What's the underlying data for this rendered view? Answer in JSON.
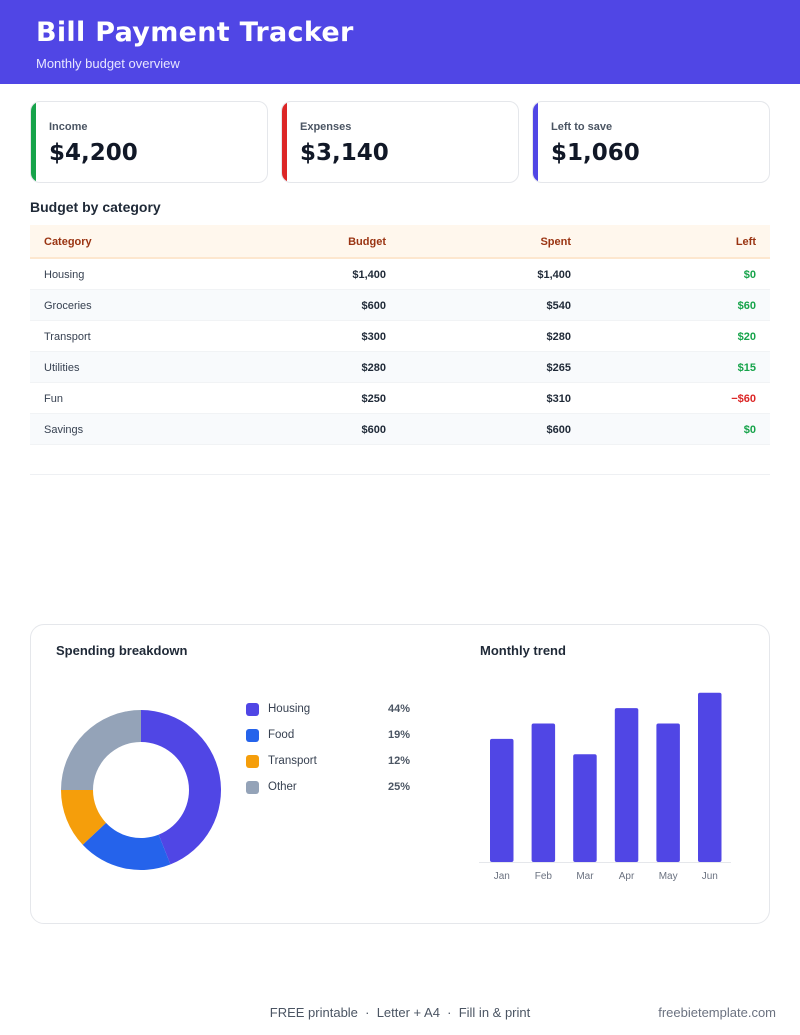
{
  "header": {
    "title": "Bill Payment Tracker",
    "subtitle": "Monthly budget overview"
  },
  "summary": [
    {
      "label": "Income",
      "value": "$4,200",
      "color": "#16a34a"
    },
    {
      "label": "Expenses",
      "value": "$3,140",
      "color": "#dc2626"
    },
    {
      "label": "Left to save",
      "value": "$1,060",
      "color": "#5046e5"
    }
  ],
  "budget": {
    "title": "Budget by category",
    "columns": [
      "Category",
      "Budget",
      "Spent",
      "Left"
    ],
    "rows": [
      {
        "category": "Housing",
        "budget": "$1,400",
        "spent": "$1,400",
        "left": "$0",
        "negative": false
      },
      {
        "category": "Groceries",
        "budget": "$600",
        "spent": "$540",
        "left": "$60",
        "negative": false
      },
      {
        "category": "Transport",
        "budget": "$300",
        "spent": "$280",
        "left": "$20",
        "negative": false
      },
      {
        "category": "Utilities",
        "budget": "$280",
        "spent": "$265",
        "left": "$15",
        "negative": false
      },
      {
        "category": "Fun",
        "budget": "$250",
        "spent": "$310",
        "left": "−$60",
        "negative": true
      },
      {
        "category": "Savings",
        "budget": "$600",
        "spent": "$600",
        "left": "$0",
        "negative": false
      }
    ]
  },
  "chart_data": [
    {
      "type": "pie",
      "title": "Spending breakdown",
      "donut": true,
      "categories": [
        "Housing",
        "Food",
        "Transport",
        "Other"
      ],
      "values": [
        44,
        19,
        12,
        25
      ],
      "labels": [
        "44%",
        "19%",
        "12%",
        "25%"
      ],
      "colors": [
        "#5046e5",
        "#2563eb",
        "#f59e0b",
        "#94a3b8"
      ],
      "legend": "right"
    },
    {
      "type": "bar",
      "title": "Monthly trend",
      "categories": [
        "Jan",
        "Feb",
        "Mar",
        "Apr",
        "May",
        "Jun"
      ],
      "values": [
        80,
        90,
        70,
        100,
        90,
        110
      ],
      "ylim": [
        0,
        115
      ],
      "color": "#5046e5",
      "grid": false
    }
  ],
  "footer": {
    "center": "FREE printable  ·  Letter + A4  ·  Fill in & print",
    "right": "freebietemplate.com"
  }
}
